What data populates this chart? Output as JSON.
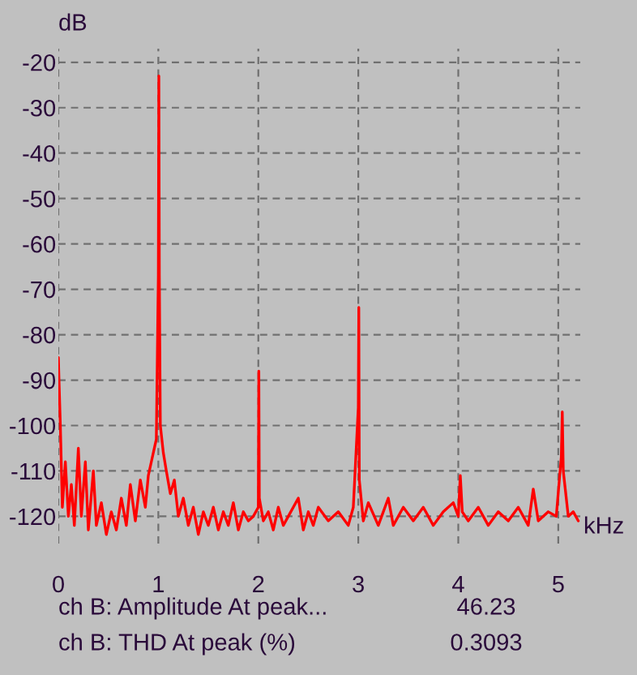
{
  "chart_data": {
    "type": "line",
    "xlabel": "kHz",
    "ylabel": "dB",
    "x": [
      0.0,
      0.02,
      0.04,
      0.07,
      0.1,
      0.13,
      0.16,
      0.2,
      0.23,
      0.27,
      0.3,
      0.35,
      0.38,
      0.43,
      0.48,
      0.53,
      0.58,
      0.63,
      0.68,
      0.72,
      0.77,
      0.82,
      0.87,
      0.9,
      0.93,
      0.96,
      0.98,
      1.0,
      1.005,
      1.01,
      1.02,
      1.05,
      1.08,
      1.12,
      1.16,
      1.2,
      1.25,
      1.3,
      1.35,
      1.4,
      1.45,
      1.5,
      1.55,
      1.6,
      1.65,
      1.7,
      1.75,
      1.8,
      1.85,
      1.9,
      1.95,
      2.0,
      2.005,
      2.01,
      2.05,
      2.1,
      2.15,
      2.2,
      2.25,
      2.3,
      2.4,
      2.45,
      2.5,
      2.55,
      2.6,
      2.7,
      2.8,
      2.9,
      2.95,
      3.0,
      3.005,
      3.01,
      3.05,
      3.1,
      3.2,
      3.25,
      3.3,
      3.35,
      3.45,
      3.55,
      3.65,
      3.75,
      3.85,
      3.95,
      4.0,
      4.02,
      4.04,
      4.1,
      4.2,
      4.3,
      4.4,
      4.5,
      4.6,
      4.7,
      4.75,
      4.8,
      4.9,
      4.98,
      5.03,
      5.04,
      5.05,
      5.1,
      5.15,
      5.2
    ],
    "series": [
      {
        "color": "#ff0000",
        "values": [
          -85,
          -100,
          -118,
          -108,
          -120,
          -113,
          -122,
          -105,
          -120,
          -108,
          -123,
          -110,
          -122,
          -117,
          -124,
          -119,
          -123,
          -116,
          -122,
          -113,
          -121,
          -112,
          -118,
          -111,
          -108,
          -105,
          -103,
          -67,
          -23,
          -67,
          -100,
          -106,
          -110,
          -115,
          -112,
          -120,
          -116,
          -122,
          -118,
          -124,
          -119,
          -122,
          -118,
          -123,
          -119,
          -122,
          -117,
          -123,
          -119,
          -121,
          -120,
          -118,
          -88,
          -116,
          -121,
          -119,
          -123,
          -118,
          -122,
          -120,
          -116,
          -123,
          -119,
          -122,
          -118,
          -121,
          -119,
          -122,
          -118,
          -96,
          -74,
          -112,
          -121,
          -117,
          -122,
          -119,
          -116,
          -122,
          -118,
          -121,
          -118,
          -122,
          -119,
          -117,
          -120,
          -111,
          -119,
          -121,
          -118,
          -122,
          -119,
          -121,
          -118,
          -122,
          -114,
          -121,
          -119,
          -120,
          -107,
          -97,
          -110,
          -120,
          -119,
          -121
        ]
      }
    ],
    "xlim": [
      0,
      5.22
    ],
    "xticks": [
      0,
      1,
      2,
      3,
      4,
      5
    ],
    "ylim": [
      -126,
      -17
    ],
    "yticks": [
      -20,
      -30,
      -40,
      -50,
      -60,
      -70,
      -80,
      -90,
      -100,
      -110,
      -120
    ],
    "grid": true,
    "annotations": [
      "ch B: Amplitude At peak...",
      "46.23",
      "ch B: THD At peak (%)",
      "0.3093"
    ]
  }
}
